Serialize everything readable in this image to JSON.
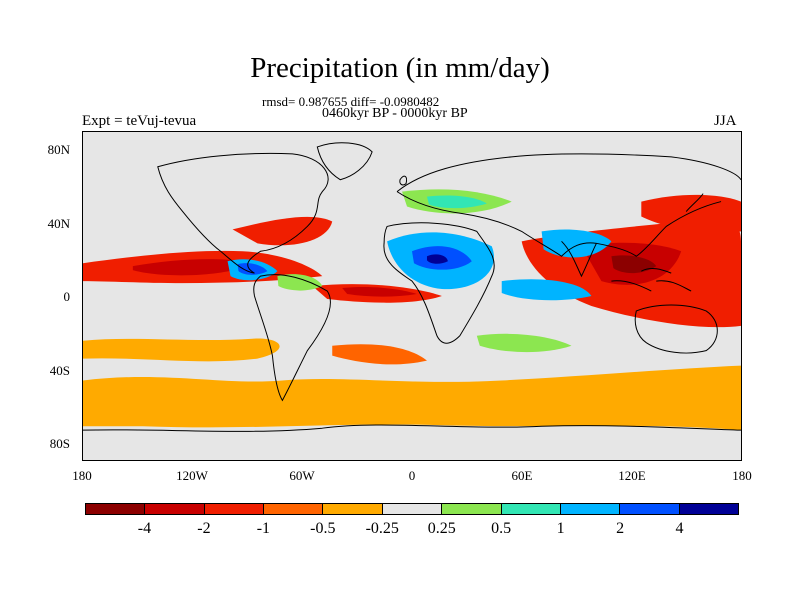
{
  "title": "Precipitation (in mm/day)",
  "stats": "rmsd= 0.987655 diff= -0.0980482",
  "period": "0460kyr BP - 0000kyr BP",
  "experiment": "Expt = teVuj-tevua",
  "season": "JJA",
  "map": {
    "projection": "cylindrical-equidistant",
    "lon_range": [
      -180,
      180
    ],
    "lat_range": [
      -90,
      90
    ],
    "lat_ticks": [
      {
        "value": 80,
        "label": "80N"
      },
      {
        "value": 40,
        "label": "40N"
      },
      {
        "value": 0,
        "label": "0"
      },
      {
        "value": -40,
        "label": "40S"
      },
      {
        "value": -80,
        "label": "80S"
      }
    ],
    "lon_ticks": [
      {
        "value": -180,
        "label": "180"
      },
      {
        "value": -120,
        "label": "120W"
      },
      {
        "value": -60,
        "label": "60W"
      },
      {
        "value": 0,
        "label": "0"
      },
      {
        "value": 60,
        "label": "60E"
      },
      {
        "value": 120,
        "label": "120E"
      },
      {
        "value": 180,
        "label": "180"
      }
    ],
    "background_color": "#e6e6e6"
  },
  "colorbar": {
    "colors": [
      "#8c0000",
      "#c80000",
      "#f01e00",
      "#ff6400",
      "#ffaa00",
      "#e6e6e6",
      "#8ce650",
      "#32e6b4",
      "#00b4ff",
      "#0050ff",
      "#000096"
    ],
    "labels": [
      "-4",
      "-2",
      "-1",
      "-0.5",
      "-0.25",
      "0.25",
      "0.5",
      "1",
      "2",
      "4"
    ]
  }
}
